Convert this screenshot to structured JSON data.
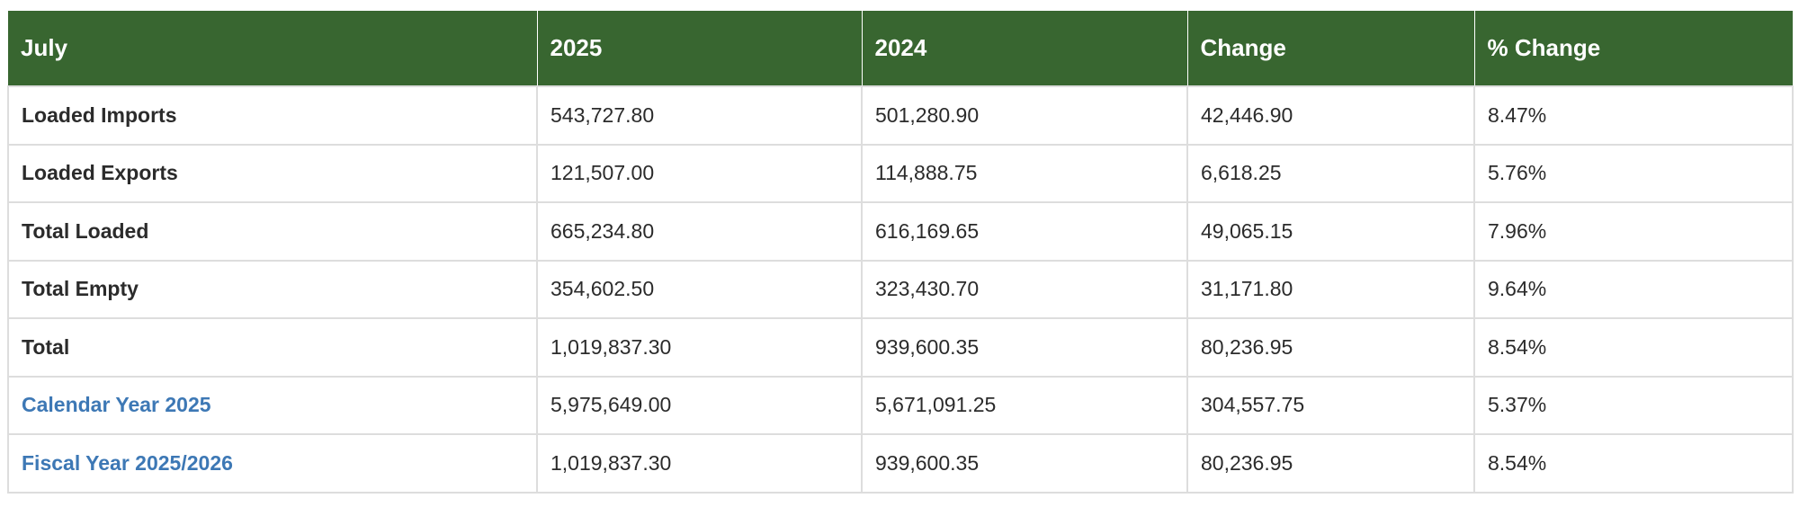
{
  "table": {
    "headers": [
      "July",
      "2025",
      "2024",
      "Change",
      "% Change"
    ],
    "rows": [
      {
        "label": "Loaded Imports",
        "is_link": false,
        "cells": [
          "543,727.80",
          "501,280.90",
          "42,446.90",
          "8.47%"
        ]
      },
      {
        "label": "Loaded Exports",
        "is_link": false,
        "cells": [
          "121,507.00",
          "114,888.75",
          "6,618.25",
          "5.76%"
        ]
      },
      {
        "label": "Total Loaded",
        "is_link": false,
        "cells": [
          "665,234.80",
          "616,169.65",
          "49,065.15",
          "7.96%"
        ]
      },
      {
        "label": "Total Empty",
        "is_link": false,
        "cells": [
          "354,602.50",
          "323,430.70",
          "31,171.80",
          "9.64%"
        ]
      },
      {
        "label": "Total",
        "is_link": false,
        "cells": [
          "1,019,837.30",
          "939,600.35",
          "80,236.95",
          "8.54%"
        ]
      },
      {
        "label": "Calendar Year 2025",
        "is_link": true,
        "cells": [
          "5,975,649.00",
          "5,671,091.25",
          "304,557.75",
          "5.37%"
        ]
      },
      {
        "label": "Fiscal Year 2025/2026",
        "is_link": true,
        "cells": [
          "1,019,837.30",
          "939,600.35",
          "80,236.95",
          "8.54%"
        ]
      }
    ]
  },
  "colors": {
    "header_bg": "#386630",
    "header_text": "#ffffff",
    "link_text": "#3d78b5",
    "body_text": "#2b2b2b",
    "border": "#dddddd"
  }
}
